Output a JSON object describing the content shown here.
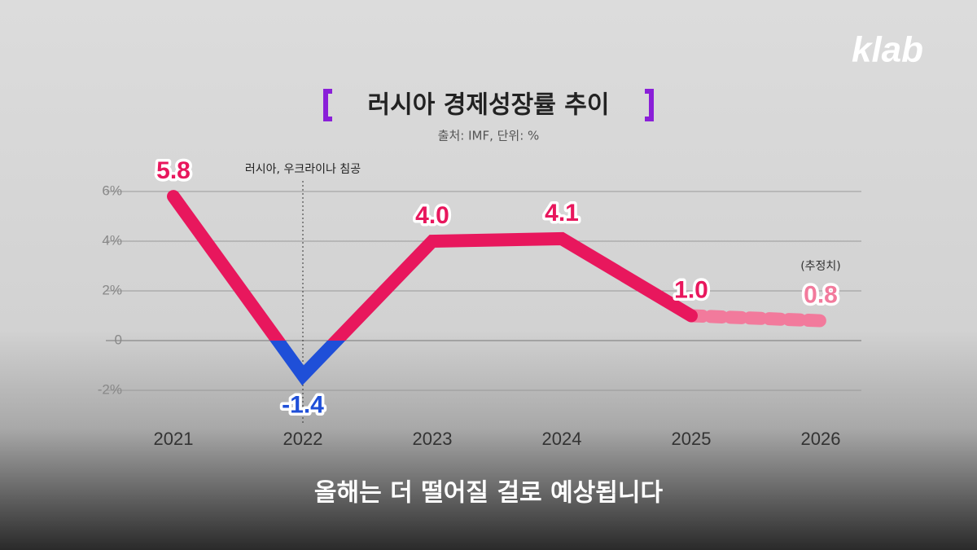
{
  "logo": "klab",
  "caption": "올해는 더 떨어질 걸로 예상됩니다",
  "chart_data": {
    "type": "line",
    "title": "러시아 경제성장률 추이",
    "subtitle": "출처: IMF, 단위: %",
    "categories": [
      "2021",
      "2022",
      "2023",
      "2024",
      "2025",
      "2026"
    ],
    "series": [
      {
        "color": "#e8175d",
        "negative_color": "#1f4fd8",
        "values": [
          5.8,
          -1.4,
          4.0,
          4.1,
          1.0,
          0.8
        ],
        "value_labels": [
          "5.8",
          "-1.4",
          "4.0",
          "4.1",
          "1.0",
          "0.8"
        ]
      }
    ],
    "estimate": {
      "label": "(추정치)",
      "from": "2025",
      "color": "#f27a9c"
    },
    "annotation": {
      "text": "러시아, 우크라이나 침공",
      "category": "2022"
    },
    "ylim": [
      -2.5,
      6.5
    ],
    "yticks": [
      {
        "value": -2,
        "label": "-2%"
      },
      0,
      {
        "value": 2,
        "label": "2%"
      },
      {
        "value": 4,
        "label": "4%"
      },
      {
        "value": 6,
        "label": "6%"
      }
    ],
    "grid": true
  }
}
